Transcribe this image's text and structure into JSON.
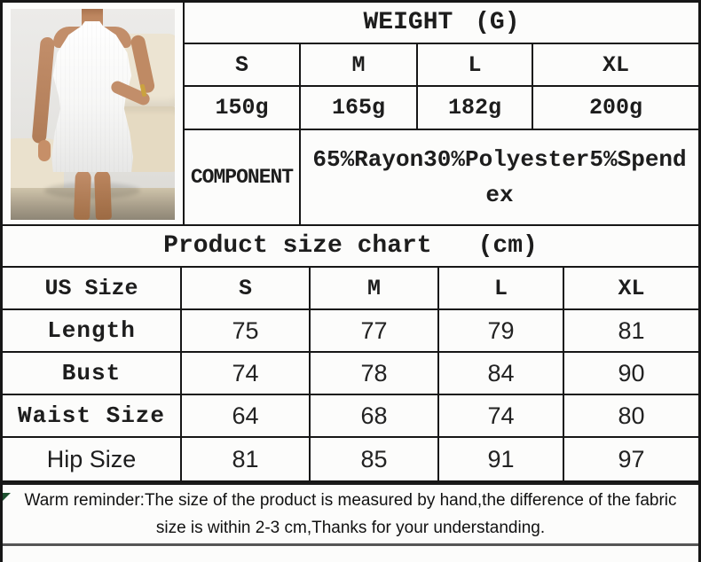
{
  "weight_table": {
    "title": "WEIGHT (G)",
    "sizes": [
      "S",
      "M",
      "L",
      "XL"
    ],
    "weights": [
      "150g",
      "165g",
      "182g",
      "200g"
    ],
    "component_label": "COMPONENT",
    "component_value": "65%Rayon30%Polyester5%Spendex"
  },
  "size_chart": {
    "title": "Product size chart",
    "unit": "(cm)",
    "header": [
      "US Size",
      "S",
      "M",
      "L",
      "XL"
    ],
    "rows": [
      {
        "label": "Length",
        "values": [
          "75",
          "77",
          "79",
          "81"
        ]
      },
      {
        "label": "Bust",
        "values": [
          "74",
          "78",
          "84",
          "90"
        ]
      },
      {
        "label": "Waist Size",
        "values": [
          "64",
          "68",
          "74",
          "80"
        ]
      },
      {
        "label": "Hip Size",
        "values": [
          "81",
          "85",
          "91",
          "97"
        ]
      }
    ]
  },
  "reminder": {
    "text": "Warm reminder:The size of the product is measured by hand,the difference of the fabric size is within 2-3 cm,Thanks for your understanding."
  },
  "photo": {
    "alt": "Model wearing a white halter-neck ribbed bodycon mini dress, hand on hip, beige leather sofa in background"
  },
  "colors": {
    "border": "#161616",
    "background": "#fcfcfb",
    "text": "#1d1d1d",
    "couch_cream": "#e9e0cc",
    "skin": "#c28e6a",
    "dress_white": "#f7f7f6",
    "bracelet_gold": "#caa23f",
    "corner_artifact_green": "#1e5130"
  }
}
